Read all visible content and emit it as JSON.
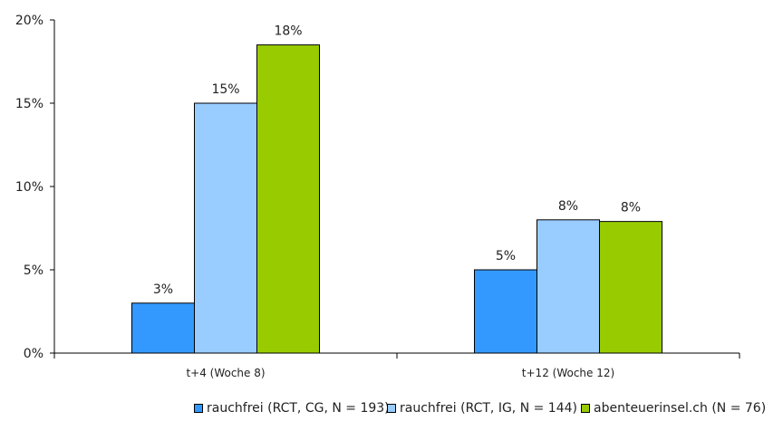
{
  "chart_data": {
    "type": "bar",
    "categories": [
      "t+4 (Woche 8)",
      "t+12 (Woche 12)"
    ],
    "series": [
      {
        "name": "rauchfrei (RCT, CG, N = 193)",
        "values": [
          3,
          5
        ],
        "labels": [
          "3%",
          "5%"
        ],
        "color": "#3399ff"
      },
      {
        "name": "rauchfrei (RCT, IG, N = 144)",
        "values": [
          15,
          8
        ],
        "labels": [
          "15%",
          "8%"
        ],
        "color": "#99ccff"
      },
      {
        "name": "abenteuerinsel.ch (N = 76)",
        "values": [
          18.5,
          7.9
        ],
        "labels": [
          "18%",
          "8%"
        ],
        "color": "#99cc00"
      }
    ],
    "ylim": [
      0,
      20
    ],
    "yticks": [
      0,
      5,
      10,
      15,
      20
    ],
    "ytick_labels": [
      "0%",
      "5%",
      "10%",
      "15%",
      "20%"
    ],
    "grid": false,
    "legend_position": "bottom",
    "title": "",
    "xlabel": "",
    "ylabel": ""
  }
}
